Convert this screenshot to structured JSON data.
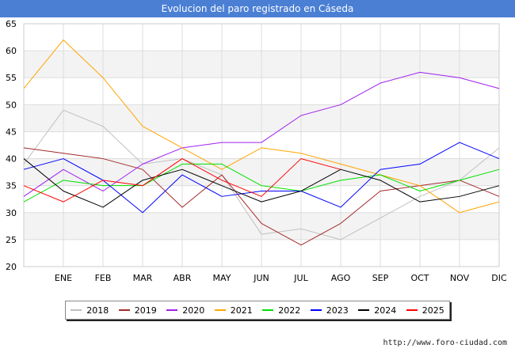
{
  "title": "Evolucion del paro registrado en Cáseda",
  "footer": "http://www.foro-ciudad.com",
  "chart_data": {
    "type": "line",
    "title": "Evolucion del paro registrado en Cáseda",
    "categories": [
      "",
      "ENE",
      "FEB",
      "MAR",
      "ABR",
      "MAY",
      "JUN",
      "JUL",
      "AGO",
      "SEP",
      "OCT",
      "NOV",
      "DIC"
    ],
    "ylim": [
      20,
      65
    ],
    "yticks": [
      20,
      25,
      30,
      35,
      40,
      45,
      50,
      55,
      60,
      65
    ],
    "grid": true,
    "legend_position": "bottom",
    "series": [
      {
        "name": "2018",
        "color": "#c0c0c0",
        "values": [
          39,
          49,
          46,
          39,
          40,
          37,
          26,
          27,
          25,
          29,
          33,
          36,
          42
        ]
      },
      {
        "name": "2019",
        "color": "#a52a2a",
        "values": [
          42,
          41,
          40,
          38,
          31,
          37,
          28,
          24,
          28,
          34,
          35,
          36,
          33
        ]
      },
      {
        "name": "2020",
        "color": "#a020f0",
        "values": [
          33,
          38,
          34,
          39,
          42,
          43,
          43,
          48,
          50,
          54,
          56,
          55,
          53
        ]
      },
      {
        "name": "2021",
        "color": "#ffa500",
        "values": [
          53,
          62,
          55,
          46,
          42,
          38,
          42,
          41,
          39,
          37,
          35,
          30,
          32
        ]
      },
      {
        "name": "2022",
        "color": "#00e000",
        "values": [
          32,
          36,
          35,
          35,
          39,
          39,
          35,
          34,
          36,
          37,
          34,
          36,
          38
        ]
      },
      {
        "name": "2023",
        "color": "#0000ff",
        "values": [
          38,
          40,
          36,
          30,
          37,
          33,
          34,
          34,
          31,
          38,
          39,
          43,
          40
        ]
      },
      {
        "name": "2024",
        "color": "#000000",
        "values": [
          40,
          34,
          31,
          36,
          38,
          35,
          32,
          34,
          38,
          36,
          32,
          33,
          35
        ]
      },
      {
        "name": "2025",
        "color": "#ff0000",
        "values": [
          35,
          32,
          36,
          35,
          40,
          36,
          33,
          40,
          38,
          null,
          null,
          null,
          null
        ]
      }
    ]
  }
}
